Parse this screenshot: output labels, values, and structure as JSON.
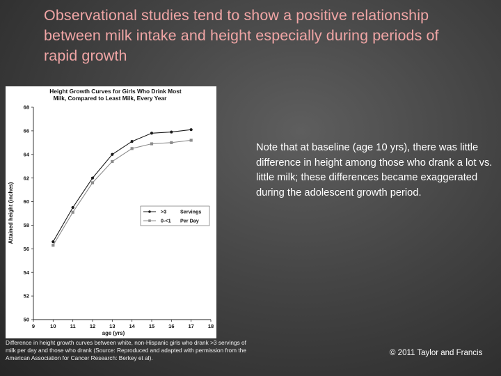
{
  "slide": {
    "title": "Observational studies tend to show a positive relationship between milk intake and height especially during periods of rapid growth",
    "note": "Note that at baseline (age 10 yrs), there was little difference in height among those who drank a lot vs. little milk; these differences became exaggerated during the adolescent growth period.",
    "caption": "Difference in height growth curves between white, non-Hispanic girls who drank >3 servings of milk per day and those who drank (Source: Reproduced and adapted with permission from the American Association for Cancer Research: Berkey et al).",
    "copyright": "© 2011 Taylor and Francis"
  },
  "colors": {
    "title": "#f0a5a5",
    "series_high": "#1a1a1a",
    "series_low": "#8c8c8c"
  },
  "chart_data": {
    "type": "line",
    "title_lines": [
      "Height Growth Curves for Girls Who Drink Most",
      "Milk, Compared to Least Milk, Every Year"
    ],
    "xlabel": "age (yrs)",
    "ylabel": "Attained height (inches)",
    "xlim": [
      9,
      18
    ],
    "ylim": [
      50,
      68
    ],
    "xticks": [
      9,
      10,
      11,
      12,
      13,
      14,
      15,
      16,
      17,
      18
    ],
    "yticks": [
      50,
      52,
      54,
      56,
      58,
      60,
      62,
      64,
      66,
      68
    ],
    "grid": false,
    "legend_position": "right",
    "series": [
      {
        "name": ">3 Servings",
        "legend_parts": [
          ">3",
          "Servings"
        ],
        "marker": "circle",
        "color": "#1a1a1a",
        "x": [
          10,
          11,
          12,
          13,
          14,
          15,
          16,
          17
        ],
        "y": [
          56.6,
          59.5,
          62.0,
          64.0,
          65.1,
          65.8,
          65.9,
          66.1
        ]
      },
      {
        "name": "0-<1 Per Day",
        "legend_parts": [
          "0-<1",
          "Per Day"
        ],
        "marker": "square",
        "color": "#8c8c8c",
        "x": [
          10,
          11,
          12,
          13,
          14,
          15,
          16,
          17
        ],
        "y": [
          56.3,
          59.1,
          61.6,
          63.4,
          64.5,
          64.9,
          65.0,
          65.2
        ]
      }
    ]
  }
}
